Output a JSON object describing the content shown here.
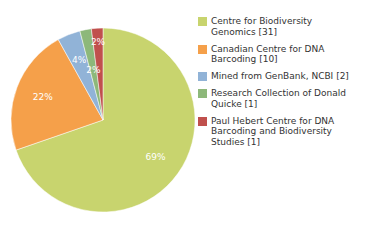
{
  "chart_data": {
    "type": "pie",
    "categories": [
      "Centre for Biodiversity\nGenomics [31]",
      "Canadian Centre for DNA\nBarcoding [10]",
      "Mined from GenBank, NCBI [2]",
      "Research Collection of Donald\nQuicke [1]",
      "Paul Hebert Centre for DNA\nBarcoding and Biodiversity\nStudies [1]"
    ],
    "values": [
      69,
      22,
      4,
      2,
      2
    ],
    "value_labels": [
      "69%",
      "22%",
      "4%",
      "2%",
      "2%"
    ],
    "colors": [
      "#c8d46e",
      "#f5a04a",
      "#91b3d7",
      "#8db87a",
      "#c0504d"
    ],
    "data_labels": true,
    "legend": "right"
  }
}
